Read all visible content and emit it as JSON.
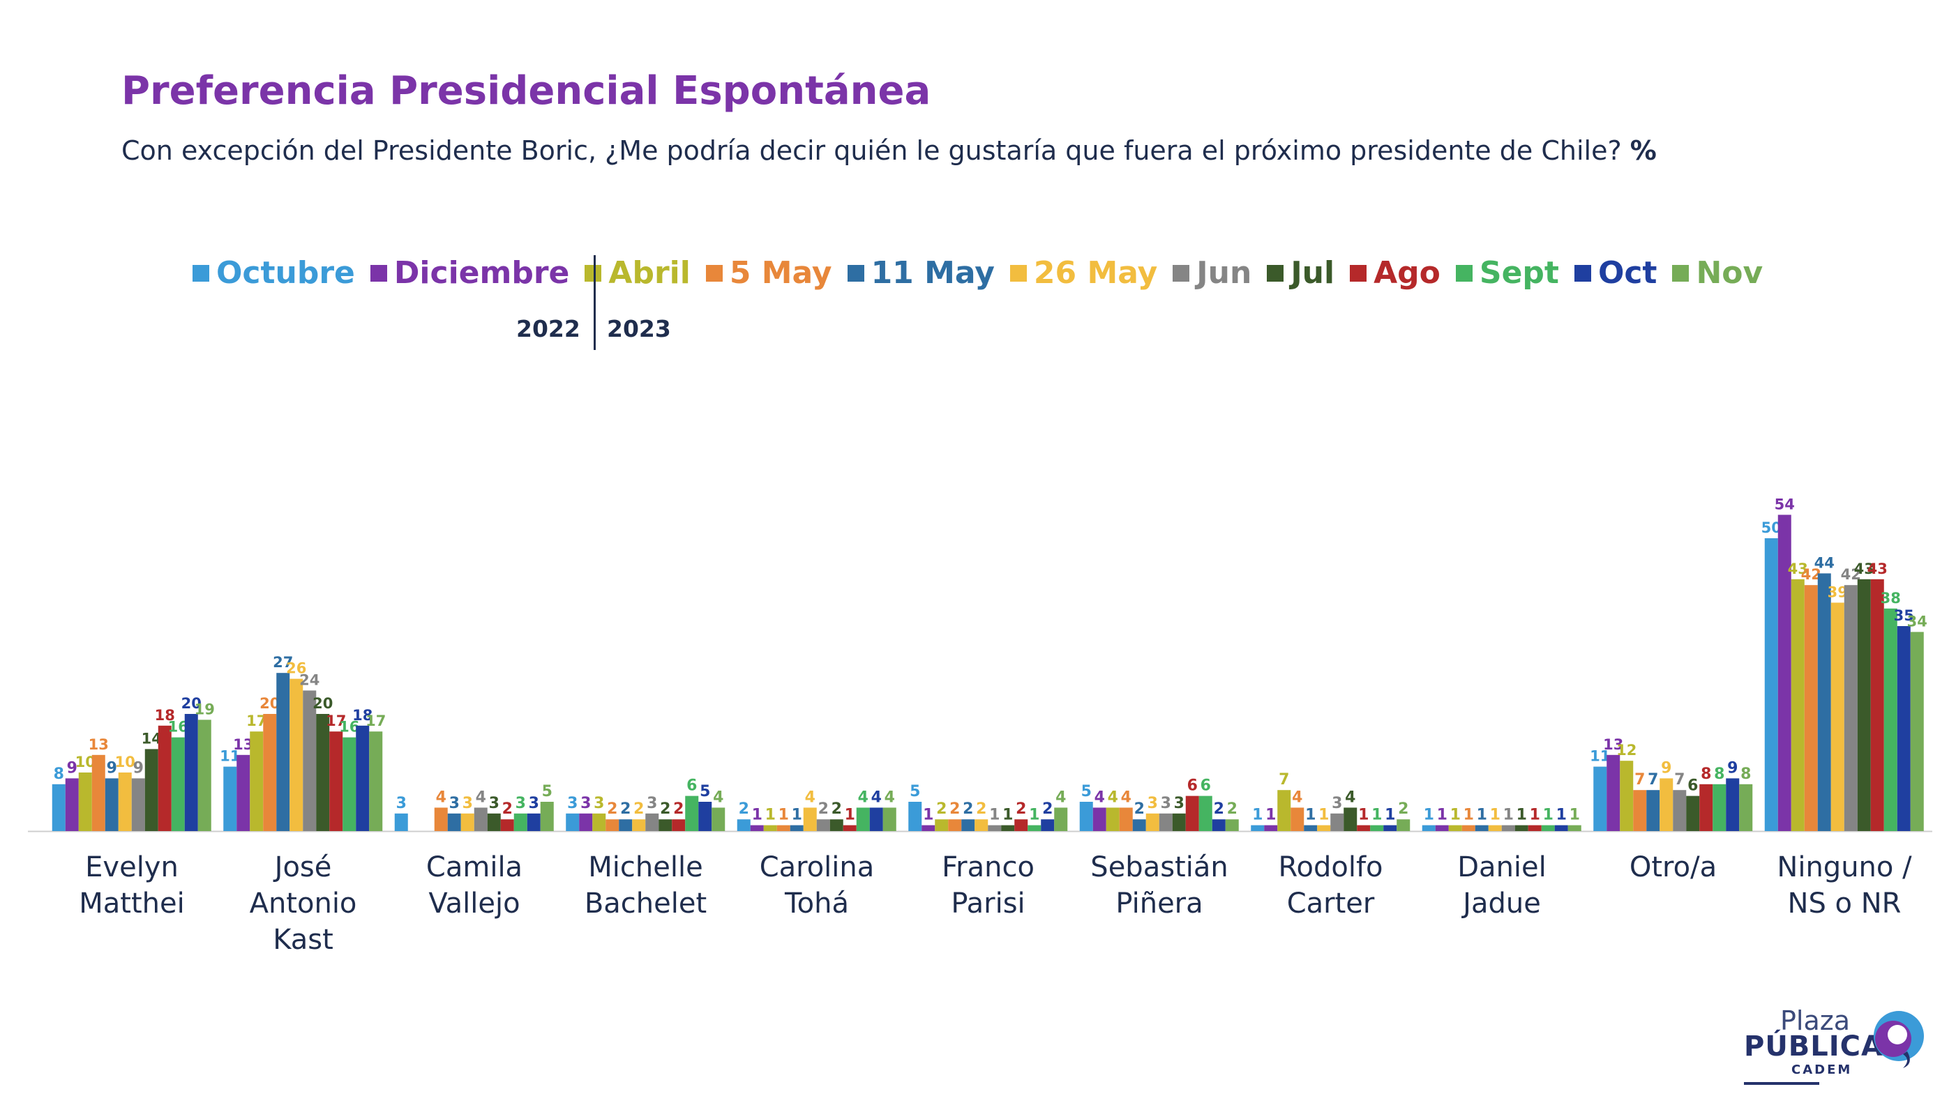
{
  "header": {
    "title": "Preferencia Presidencial Espontánea",
    "subtitle": "Con excepción del Presidente Boric, ¿Me podría decir quién le gustaría que fuera el próximo presidente de Chile?",
    "subtitle_unit": "%"
  },
  "years": {
    "y2022": "2022",
    "y2023": "2023"
  },
  "logo": {
    "line1": "Plaza",
    "line2": "PÚBLICA",
    "line3": "CADEM"
  },
  "chart_data": {
    "type": "bar",
    "categories": [
      "Evelyn\nMatthei",
      "José\nAntonio\nKast",
      "Camila\nVallejo",
      "Michelle\nBachelet",
      "Carolina\nTohá",
      "Franco\nParisi",
      "Sebastián\nPiñera",
      "Rodolfo\nCarter",
      "Daniel\nJadue",
      "Otro/a",
      "Ninguno /\nNS o NR"
    ],
    "series": [
      {
        "name": "Octubre",
        "color": "#3b9bd8",
        "values": [
          8,
          11,
          3,
          3,
          2,
          5,
          5,
          1,
          1,
          11,
          50
        ]
      },
      {
        "name": "Diciembre",
        "color": "#7b34a8",
        "values": [
          9,
          13,
          null,
          3,
          1,
          1,
          4,
          1,
          1,
          13,
          54
        ]
      },
      {
        "name": "Abril",
        "color": "#b9b82d",
        "values": [
          10,
          17,
          null,
          3,
          1,
          2,
          4,
          7,
          1,
          12,
          43
        ]
      },
      {
        "name": "5 May",
        "color": "#e8873a",
        "values": [
          13,
          20,
          4,
          2,
          1,
          2,
          4,
          4,
          1,
          7,
          42
        ]
      },
      {
        "name": "11 May",
        "color": "#2e6ea3",
        "values": [
          9,
          27,
          3,
          2,
          1,
          2,
          2,
          1,
          1,
          7,
          44
        ]
      },
      {
        "name": "26 May",
        "color": "#f2bd3f",
        "values": [
          10,
          26,
          3,
          2,
          4,
          2,
          3,
          1,
          1,
          9,
          39
        ]
      },
      {
        "name": "Jun",
        "color": "#858585",
        "values": [
          9,
          24,
          4,
          3,
          2,
          1,
          3,
          3,
          1,
          7,
          42
        ]
      },
      {
        "name": "Jul",
        "color": "#3b5a2a",
        "values": [
          14,
          20,
          3,
          2,
          2,
          1,
          3,
          4,
          1,
          6,
          43
        ]
      },
      {
        "name": "Ago",
        "color": "#b5292a",
        "values": [
          18,
          17,
          2,
          2,
          1,
          2,
          6,
          1,
          1,
          8,
          43
        ]
      },
      {
        "name": "Sept",
        "color": "#45b461",
        "values": [
          16,
          16,
          3,
          6,
          4,
          1,
          6,
          1,
          1,
          8,
          38
        ]
      },
      {
        "name": "Oct",
        "color": "#1f3fa0",
        "values": [
          20,
          18,
          3,
          5,
          4,
          2,
          2,
          1,
          1,
          9,
          35
        ]
      },
      {
        "name": "Nov",
        "color": "#76ac57",
        "values": [
          19,
          17,
          5,
          4,
          4,
          4,
          2,
          2,
          1,
          8,
          34
        ]
      }
    ],
    "ylim": [
      0,
      56
    ],
    "grid": false,
    "legend_position": "top"
  }
}
